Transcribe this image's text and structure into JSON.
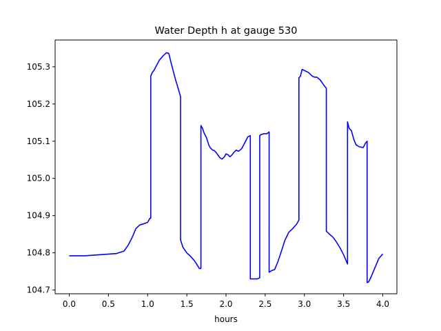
{
  "chart_data": {
    "type": "line",
    "title": "Water Depth h at gauge 530",
    "xlabel": "hours",
    "ylabel": "",
    "xlim": [
      -0.18,
      4.18
    ],
    "ylim": [
      104.69,
      105.372
    ],
    "xticks": [
      0.0,
      0.5,
      1.0,
      1.5,
      2.0,
      2.5,
      3.0,
      3.5,
      4.0
    ],
    "xtick_labels": [
      "0.0",
      "0.5",
      "1.0",
      "1.5",
      "2.0",
      "2.5",
      "3.0",
      "3.5",
      "4.0"
    ],
    "yticks": [
      104.7,
      104.8,
      104.9,
      105.0,
      105.1,
      105.2,
      105.3
    ],
    "ytick_labels": [
      "104.7",
      "104.8",
      "104.9",
      "105.0",
      "105.1",
      "105.2",
      "105.3"
    ],
    "grid": false,
    "line_color": "#0000ff",
    "series": [
      {
        "name": "",
        "x": [
          0.0,
          0.2,
          0.4,
          0.6,
          0.7,
          0.75,
          0.8,
          0.85,
          0.9,
          0.95,
          1.0,
          1.03,
          1.04,
          1.04,
          1.06,
          1.08,
          1.1,
          1.15,
          1.2,
          1.24,
          1.27,
          1.3,
          1.35,
          1.42,
          1.42,
          1.45,
          1.5,
          1.55,
          1.6,
          1.66,
          1.68,
          1.68,
          1.7,
          1.72,
          1.75,
          1.78,
          1.8,
          1.83,
          1.85,
          1.88,
          1.92,
          1.95,
          1.98,
          2.0,
          2.03,
          2.05,
          2.08,
          2.1,
          2.13,
          2.16,
          2.2,
          2.25,
          2.28,
          2.31,
          2.31,
          2.35,
          2.4,
          2.43,
          2.43,
          2.45,
          2.48,
          2.52,
          2.55,
          2.55,
          2.58,
          2.62,
          2.66,
          2.7,
          2.75,
          2.8,
          2.85,
          2.9,
          2.93,
          2.93,
          2.95,
          2.97,
          3.0,
          3.05,
          3.1,
          3.13,
          3.16,
          3.2,
          3.25,
          3.28,
          3.28,
          3.32,
          3.36,
          3.4,
          3.45,
          3.5,
          3.54,
          3.55,
          3.55,
          3.57,
          3.6,
          3.63,
          3.66,
          3.7,
          3.75,
          3.78,
          3.8,
          3.8,
          3.82,
          3.85,
          3.9,
          3.95,
          4.0
        ],
        "y": [
          104.792,
          104.792,
          104.795,
          104.798,
          104.805,
          104.82,
          104.84,
          104.865,
          104.875,
          104.878,
          104.882,
          104.893,
          104.893,
          105.275,
          105.285,
          105.29,
          105.298,
          105.318,
          105.33,
          105.338,
          105.336,
          105.31,
          105.27,
          105.22,
          104.835,
          104.815,
          104.8,
          104.79,
          104.778,
          104.758,
          104.758,
          105.142,
          105.135,
          105.122,
          105.11,
          105.09,
          105.082,
          105.076,
          105.075,
          105.068,
          105.056,
          105.052,
          105.058,
          105.066,
          105.063,
          105.058,
          105.064,
          105.07,
          105.076,
          105.073,
          105.08,
          105.1,
          105.112,
          105.115,
          104.73,
          104.73,
          104.73,
          104.733,
          105.115,
          105.118,
          105.12,
          105.12,
          105.125,
          104.748,
          104.752,
          104.755,
          104.775,
          104.8,
          104.833,
          104.855,
          104.865,
          104.877,
          104.888,
          105.27,
          105.275,
          105.293,
          105.29,
          105.285,
          105.275,
          105.272,
          105.272,
          105.265,
          105.25,
          105.242,
          104.858,
          104.85,
          104.843,
          104.832,
          104.815,
          104.795,
          104.775,
          104.77,
          105.152,
          105.135,
          105.128,
          105.105,
          105.09,
          105.085,
          105.083,
          105.095,
          105.1,
          104.72,
          104.722,
          104.735,
          104.76,
          104.785,
          104.797
        ]
      }
    ]
  }
}
